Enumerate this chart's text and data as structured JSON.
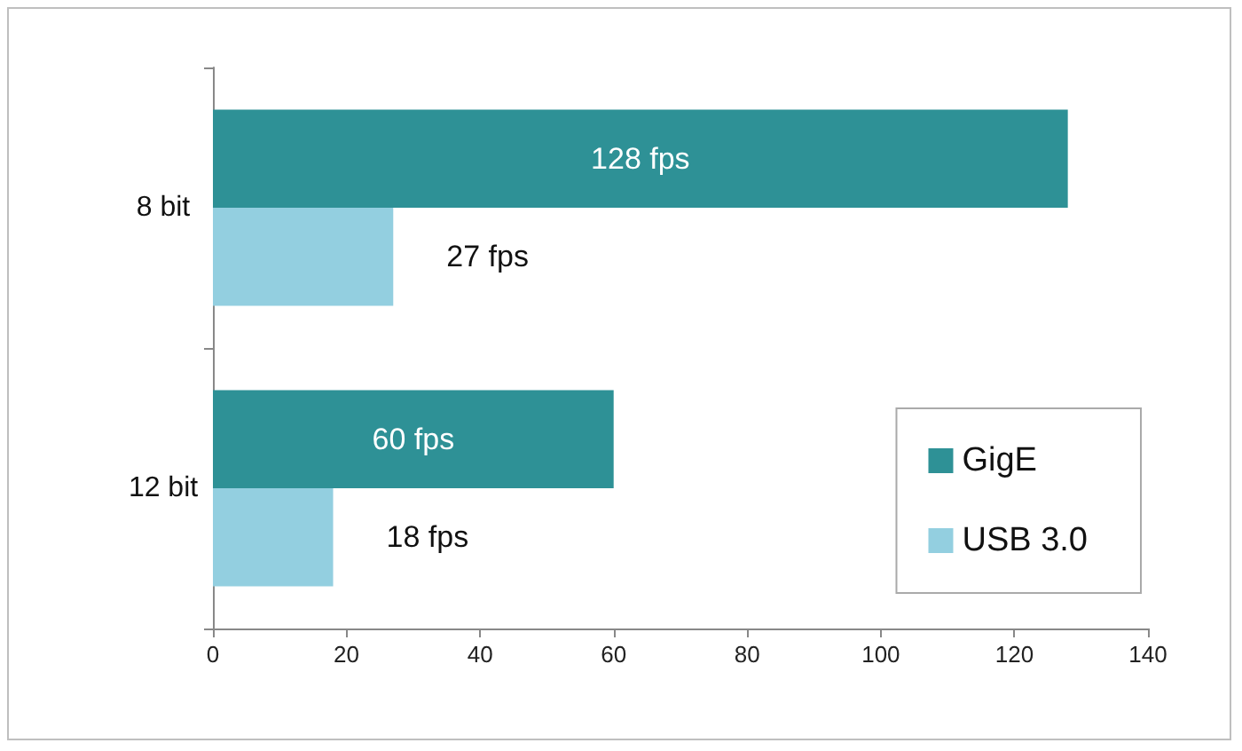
{
  "chart_data": {
    "type": "bar",
    "orientation": "horizontal",
    "categories": [
      "8 bit",
      "12 bit"
    ],
    "series": [
      {
        "name": "GigE",
        "color": "#2e9196",
        "values": [
          128,
          60
        ],
        "value_labels": [
          "128 fps",
          "60 fps"
        ]
      },
      {
        "name": "USB 3.0",
        "color": "#93cfe0",
        "values": [
          27,
          18
        ],
        "value_labels": [
          "27 fps",
          "18 fps"
        ]
      }
    ],
    "xlim": [
      0,
      140
    ],
    "xticks": [
      0,
      20,
      40,
      60,
      80,
      100,
      120,
      140
    ],
    "grid": false,
    "legend": "bottom right"
  }
}
